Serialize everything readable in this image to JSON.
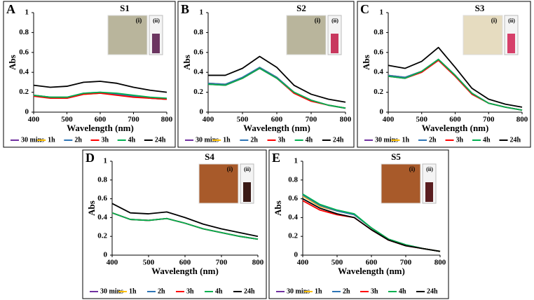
{
  "chart_data": [
    {
      "type": "line",
      "label": "A",
      "title": "S1",
      "xlabel": "Wavelength (nm)",
      "ylabel": "Abs",
      "annotations": [
        "(i)",
        "(ii)"
      ],
      "x": [
        400,
        450,
        500,
        550,
        600,
        650,
        700,
        750,
        800
      ],
      "xlim": [
        400,
        800
      ],
      "xticks": [
        400,
        500,
        600,
        700,
        800
      ],
      "ylim": [
        0,
        1
      ],
      "yticks": [
        0,
        0.2,
        0.4,
        0.6,
        0.8,
        1
      ],
      "series": [
        {
          "name": "30 mins",
          "color": "#7030a0",
          "values": [
            0.17,
            0.15,
            0.14,
            0.18,
            0.19,
            0.18,
            0.16,
            0.14,
            0.13
          ]
        },
        {
          "name": "1h",
          "color": "#ffc000",
          "values": [
            0.17,
            0.15,
            0.15,
            0.18,
            0.19,
            0.18,
            0.16,
            0.14,
            0.13
          ]
        },
        {
          "name": "2h",
          "color": "#2e75b6",
          "values": [
            0.17,
            0.15,
            0.15,
            0.19,
            0.2,
            0.18,
            0.16,
            0.14,
            0.13
          ]
        },
        {
          "name": "3h",
          "color": "#ff0000",
          "values": [
            0.16,
            0.14,
            0.14,
            0.18,
            0.19,
            0.17,
            0.15,
            0.14,
            0.13
          ]
        },
        {
          "name": "4h",
          "color": "#00b050",
          "values": [
            0.17,
            0.15,
            0.15,
            0.19,
            0.2,
            0.19,
            0.17,
            0.15,
            0.14
          ]
        },
        {
          "name": "24h",
          "color": "#000000",
          "values": [
            0.27,
            0.25,
            0.26,
            0.3,
            0.31,
            0.29,
            0.25,
            0.22,
            0.2
          ]
        }
      ]
    },
    {
      "type": "line",
      "label": "B",
      "title": "S2",
      "xlabel": "Wavelength (nm)",
      "ylabel": "Abs",
      "annotations": [
        "(i)",
        "(ii)"
      ],
      "x": [
        400,
        450,
        500,
        550,
        600,
        650,
        700,
        750,
        800
      ],
      "xlim": [
        400,
        800
      ],
      "xticks": [
        400,
        500,
        600,
        700,
        800
      ],
      "ylim": [
        0,
        1
      ],
      "yticks": [
        0,
        0.2,
        0.4,
        0.6,
        0.8,
        1
      ],
      "series": [
        {
          "name": "30 mins",
          "color": "#7030a0",
          "values": [
            0.29,
            0.28,
            0.34,
            0.44,
            0.35,
            0.2,
            0.12,
            0.07,
            0.04
          ]
        },
        {
          "name": "1h",
          "color": "#ffc000",
          "values": [
            0.29,
            0.28,
            0.34,
            0.45,
            0.35,
            0.2,
            0.12,
            0.07,
            0.04
          ]
        },
        {
          "name": "2h",
          "color": "#2e75b6",
          "values": [
            0.29,
            0.28,
            0.35,
            0.45,
            0.35,
            0.2,
            0.12,
            0.07,
            0.04
          ]
        },
        {
          "name": "3h",
          "color": "#ff0000",
          "values": [
            0.28,
            0.27,
            0.34,
            0.44,
            0.34,
            0.19,
            0.11,
            0.07,
            0.04
          ]
        },
        {
          "name": "4h",
          "color": "#00b050",
          "values": [
            0.28,
            0.27,
            0.34,
            0.44,
            0.34,
            0.2,
            0.12,
            0.07,
            0.04
          ]
        },
        {
          "name": "24h",
          "color": "#000000",
          "values": [
            0.37,
            0.37,
            0.44,
            0.56,
            0.45,
            0.27,
            0.18,
            0.13,
            0.1
          ]
        }
      ]
    },
    {
      "type": "line",
      "label": "C",
      "title": "S3",
      "xlabel": "Wavelength (nm)",
      "ylabel": "Abs",
      "annotations": [
        "(i)",
        "(ii)"
      ],
      "x": [
        400,
        450,
        500,
        550,
        600,
        650,
        700,
        750,
        800
      ],
      "xlim": [
        400,
        800
      ],
      "xticks": [
        400,
        500,
        600,
        700,
        800
      ],
      "ylim": [
        0,
        1
      ],
      "yticks": [
        0,
        0.2,
        0.4,
        0.6,
        0.8,
        1
      ],
      "series": [
        {
          "name": "30 mins",
          "color": "#7030a0",
          "values": [
            0.37,
            0.35,
            0.41,
            0.53,
            0.37,
            0.19,
            0.09,
            0.05,
            0.02
          ]
        },
        {
          "name": "1h",
          "color": "#ffc000",
          "values": [
            0.37,
            0.35,
            0.41,
            0.53,
            0.37,
            0.19,
            0.09,
            0.05,
            0.02
          ]
        },
        {
          "name": "2h",
          "color": "#2e75b6",
          "values": [
            0.37,
            0.35,
            0.41,
            0.53,
            0.37,
            0.19,
            0.09,
            0.05,
            0.02
          ]
        },
        {
          "name": "3h",
          "color": "#ff0000",
          "values": [
            0.36,
            0.34,
            0.4,
            0.52,
            0.36,
            0.18,
            0.09,
            0.05,
            0.02
          ]
        },
        {
          "name": "4h",
          "color": "#00b050",
          "values": [
            0.36,
            0.34,
            0.41,
            0.53,
            0.37,
            0.19,
            0.09,
            0.05,
            0.02
          ]
        },
        {
          "name": "24h",
          "color": "#000000",
          "values": [
            0.47,
            0.44,
            0.51,
            0.65,
            0.45,
            0.24,
            0.13,
            0.08,
            0.05
          ]
        }
      ]
    },
    {
      "type": "line",
      "label": "D",
      "title": "S4",
      "xlabel": "Wavelength (nm)",
      "ylabel": "Abs",
      "annotations": [
        "(i)",
        "(ii)"
      ],
      "x": [
        400,
        450,
        500,
        550,
        600,
        650,
        700,
        750,
        800
      ],
      "xlim": [
        400,
        800
      ],
      "xticks": [
        400,
        500,
        600,
        700,
        800
      ],
      "ylim": [
        0,
        1
      ],
      "yticks": [
        0,
        0.2,
        0.4,
        0.6,
        0.8,
        1
      ],
      "series": [
        {
          "name": "30 mins",
          "color": "#7030a0",
          "values": [
            0.45,
            0.38,
            0.37,
            0.39,
            0.34,
            0.28,
            0.24,
            0.2,
            0.17
          ]
        },
        {
          "name": "1h",
          "color": "#ffc000",
          "values": [
            0.45,
            0.38,
            0.37,
            0.39,
            0.34,
            0.28,
            0.24,
            0.2,
            0.17
          ]
        },
        {
          "name": "2h",
          "color": "#2e75b6",
          "values": [
            0.45,
            0.38,
            0.37,
            0.39,
            0.34,
            0.28,
            0.24,
            0.2,
            0.17
          ]
        },
        {
          "name": "3h",
          "color": "#ff0000",
          "values": [
            0.45,
            0.38,
            0.37,
            0.39,
            0.34,
            0.28,
            0.24,
            0.2,
            0.17
          ]
        },
        {
          "name": "4h",
          "color": "#00b050",
          "values": [
            0.45,
            0.38,
            0.37,
            0.39,
            0.34,
            0.28,
            0.24,
            0.2,
            0.17
          ]
        },
        {
          "name": "24h",
          "color": "#000000",
          "values": [
            0.55,
            0.45,
            0.44,
            0.46,
            0.4,
            0.33,
            0.28,
            0.24,
            0.2
          ]
        }
      ]
    },
    {
      "type": "line",
      "label": "E",
      "title": "S5",
      "xlabel": "Wavelength (nm)",
      "ylabel": "Abs",
      "annotations": [
        "(i)",
        "(ii)"
      ],
      "x": [
        400,
        450,
        500,
        550,
        600,
        650,
        700,
        750,
        800
      ],
      "xlim": [
        400,
        800
      ],
      "xticks": [
        400,
        500,
        600,
        700,
        800
      ],
      "ylim": [
        0,
        1
      ],
      "yticks": [
        0,
        0.2,
        0.4,
        0.6,
        0.8,
        1
      ],
      "series": [
        {
          "name": "30 mins",
          "color": "#7030a0",
          "values": [
            0.63,
            0.52,
            0.47,
            0.43,
            0.29,
            0.17,
            0.11,
            0.07,
            0.04
          ]
        },
        {
          "name": "1h",
          "color": "#ffc000",
          "values": [
            0.63,
            0.52,
            0.47,
            0.43,
            0.29,
            0.17,
            0.11,
            0.07,
            0.04
          ]
        },
        {
          "name": "2h",
          "color": "#2e75b6",
          "values": [
            0.64,
            0.53,
            0.47,
            0.43,
            0.29,
            0.17,
            0.11,
            0.07,
            0.04
          ]
        },
        {
          "name": "3h",
          "color": "#ff0000",
          "values": [
            0.58,
            0.48,
            0.43,
            0.4,
            0.27,
            0.16,
            0.1,
            0.07,
            0.04
          ]
        },
        {
          "name": "4h",
          "color": "#00b050",
          "values": [
            0.65,
            0.54,
            0.48,
            0.44,
            0.29,
            0.17,
            0.11,
            0.07,
            0.04
          ]
        },
        {
          "name": "24h",
          "color": "#000000",
          "values": [
            0.6,
            0.5,
            0.44,
            0.4,
            0.27,
            0.16,
            0.1,
            0.07,
            0.04
          ]
        }
      ]
    }
  ]
}
